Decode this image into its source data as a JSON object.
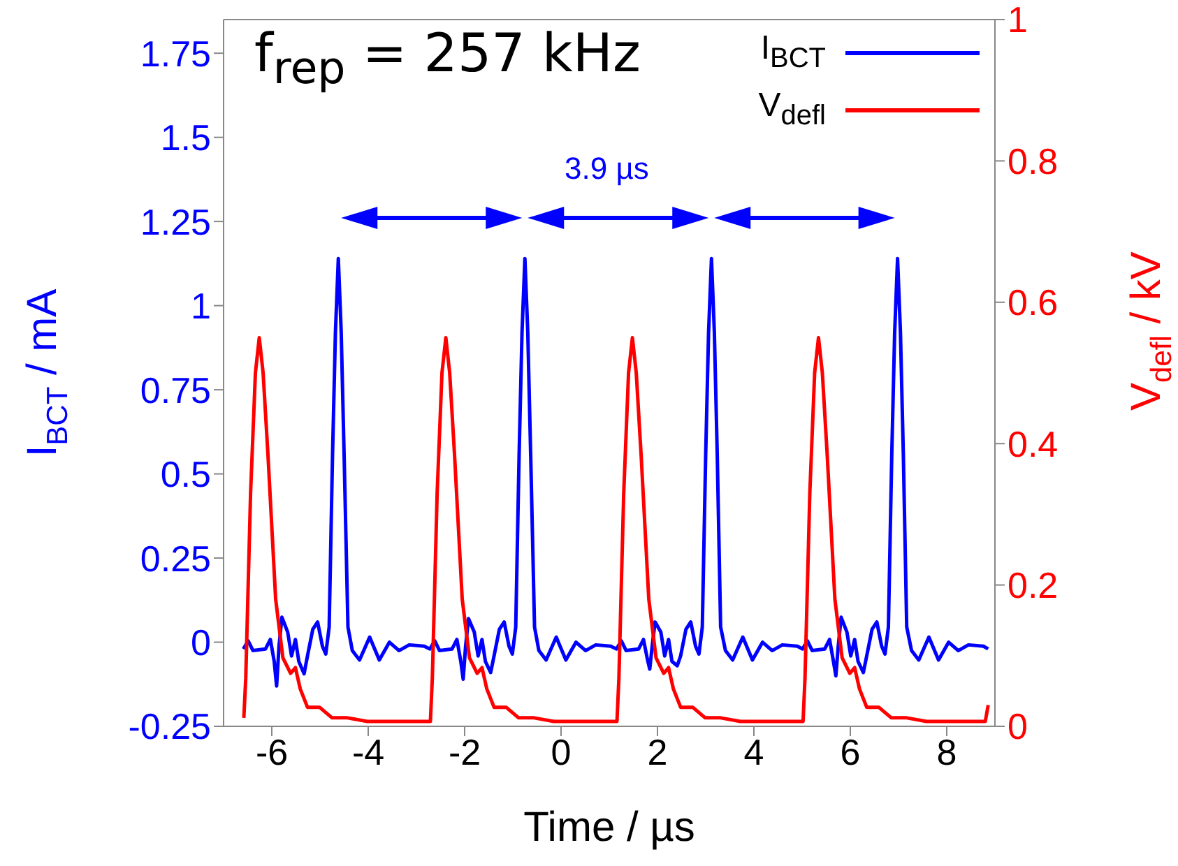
{
  "chart_data": {
    "type": "line",
    "xlabel": "Time / µs",
    "ylabel": "I$_{BCT}$ / mA",
    "y2label": "V$_{defl}$ / kV",
    "annotations": [
      "f$_{rep}$ = 257 kHz",
      "3.9 µs"
    ],
    "xlim": [
      -7,
      9
    ],
    "xticks": [
      -6,
      -4,
      -2,
      0,
      2,
      4,
      6,
      8
    ],
    "ylim": [
      -0.25,
      1.85
    ],
    "yticks": [
      -0.25,
      0,
      0.25,
      0.5,
      0.75,
      1,
      1.25,
      1.5,
      1.75
    ],
    "y2lim": [
      0,
      1
    ],
    "y2ticks": [
      0,
      0.2,
      0.4,
      0.6,
      0.8,
      1
    ],
    "grid": false,
    "legend": "top right",
    "marker": "none",
    "line_style": "solid",
    "series": [
      {
        "name": "I$_{BCT}$",
        "color": "#0000ff",
        "x": [
          -6.59,
          -6.49,
          -6.39,
          -6.13,
          -6.03,
          -5.95,
          -5.9,
          -5.85,
          -5.79,
          -5.67,
          -5.59,
          -5.51,
          -5.44,
          -5.33,
          -5.26,
          -5.15,
          -5.05,
          -4.95,
          -4.88,
          -4.81,
          -4.74,
          -4.68,
          -4.62,
          -4.56,
          -4.5,
          -4.42,
          -4.33,
          -4.18,
          -3.97,
          -3.77,
          -3.56,
          -3.36,
          -3.15,
          -2.84,
          -2.72,
          -2.62,
          -2.52,
          -2.26,
          -2.16,
          -2.08,
          -2.03,
          -1.98,
          -1.92,
          -1.8,
          -1.72,
          -1.64,
          -1.57,
          -1.46,
          -1.39,
          -1.28,
          -1.18,
          -1.08,
          -1.01,
          -0.94,
          -0.87,
          -0.81,
          -0.75,
          -0.69,
          -0.63,
          -0.55,
          -0.46,
          -0.31,
          -0.1,
          0.1,
          0.31,
          0.51,
          0.72,
          1.03,
          1.15,
          1.25,
          1.35,
          1.61,
          1.71,
          1.79,
          1.84,
          1.89,
          1.95,
          2.07,
          2.15,
          2.23,
          2.3,
          2.41,
          2.48,
          2.59,
          2.69,
          2.79,
          2.86,
          2.93,
          3.0,
          3.06,
          3.12,
          3.18,
          3.24,
          3.31,
          3.41,
          3.56,
          3.77,
          3.97,
          4.18,
          4.38,
          4.59,
          4.9,
          5.01,
          5.11,
          5.21,
          5.47,
          5.57,
          5.65,
          5.7,
          5.75,
          5.81,
          5.93,
          6.01,
          6.09,
          6.16,
          6.27,
          6.34,
          6.45,
          6.55,
          6.65,
          6.72,
          6.79,
          6.86,
          6.92,
          6.98,
          7.04,
          7.1,
          7.17,
          7.27,
          7.42,
          7.63,
          7.83,
          8.04,
          8.24,
          8.45,
          8.76,
          8.86
        ],
        "values": [
          -0.02,
          0.004,
          -0.025,
          -0.02,
          0.008,
          -0.057,
          -0.13,
          -0.012,
          0.074,
          0.03,
          -0.041,
          0.008,
          -0.057,
          -0.094,
          -0.041,
          0.038,
          0.06,
          -0.012,
          -0.035,
          0.045,
          0.557,
          0.92,
          1.14,
          0.92,
          0.557,
          0.045,
          -0.025,
          -0.053,
          0.015,
          -0.053,
          0.0,
          -0.025,
          -0.008,
          -0.012,
          -0.02,
          0.004,
          -0.025,
          -0.02,
          0.008,
          -0.057,
          -0.11,
          -0.012,
          0.07,
          0.03,
          -0.041,
          0.008,
          -0.057,
          -0.09,
          -0.041,
          0.038,
          0.06,
          -0.012,
          -0.035,
          0.045,
          0.557,
          0.92,
          1.14,
          0.92,
          0.557,
          0.045,
          -0.025,
          -0.053,
          0.015,
          -0.053,
          0.0,
          -0.025,
          -0.008,
          -0.012,
          -0.02,
          0.004,
          -0.025,
          -0.02,
          0.008,
          -0.05,
          -0.08,
          -0.012,
          0.06,
          0.03,
          -0.041,
          0.008,
          -0.057,
          -0.07,
          -0.041,
          0.038,
          0.06,
          -0.012,
          -0.035,
          0.045,
          0.557,
          0.92,
          1.14,
          0.92,
          0.557,
          0.045,
          -0.025,
          -0.053,
          0.015,
          -0.053,
          0.0,
          -0.025,
          -0.008,
          -0.012,
          -0.02,
          0.004,
          -0.025,
          -0.02,
          0.008,
          -0.057,
          -0.1,
          -0.012,
          0.074,
          0.03,
          -0.041,
          0.008,
          -0.057,
          -0.09,
          -0.041,
          0.038,
          0.06,
          -0.012,
          -0.035,
          0.045,
          0.557,
          0.92,
          1.14,
          0.92,
          0.557,
          0.045,
          -0.025,
          -0.053,
          0.015,
          -0.053,
          0.0,
          -0.025,
          -0.008,
          -0.012,
          -0.02
        ]
      },
      {
        "name": "V$_{defl}$",
        "color": "#ff0000",
        "axis": "y2",
        "x": [
          -6.58,
          -6.54,
          -6.44,
          -6.34,
          -6.26,
          -6.18,
          -6.08,
          -5.92,
          -5.77,
          -5.61,
          -5.51,
          -5.41,
          -5.26,
          -5.01,
          -4.75,
          -4.43,
          -4.02,
          -2.76,
          -2.71,
          -2.67,
          -2.57,
          -2.47,
          -2.39,
          -2.31,
          -2.21,
          -2.05,
          -1.9,
          -1.74,
          -1.64,
          -1.54,
          -1.39,
          -1.14,
          -0.88,
          -0.56,
          -0.15,
          1.11,
          1.16,
          1.2,
          1.3,
          1.4,
          1.48,
          1.56,
          1.66,
          1.82,
          1.97,
          2.13,
          2.23,
          2.33,
          2.48,
          2.73,
          2.99,
          3.31,
          3.72,
          4.98,
          5.02,
          5.06,
          5.16,
          5.26,
          5.34,
          5.42,
          5.52,
          5.68,
          5.83,
          5.99,
          6.09,
          6.19,
          6.34,
          6.59,
          6.85,
          7.17,
          7.58,
          8.8,
          8.86
        ],
        "values": [
          0.012,
          0.068,
          0.33,
          0.5,
          0.55,
          0.5,
          0.385,
          0.18,
          0.097,
          0.075,
          0.083,
          0.053,
          0.027,
          0.027,
          0.012,
          0.012,
          0.007,
          0.007,
          0.007,
          0.068,
          0.33,
          0.5,
          0.55,
          0.5,
          0.385,
          0.18,
          0.097,
          0.075,
          0.083,
          0.053,
          0.027,
          0.027,
          0.012,
          0.012,
          0.007,
          0.007,
          0.007,
          0.068,
          0.33,
          0.5,
          0.55,
          0.5,
          0.385,
          0.18,
          0.097,
          0.075,
          0.083,
          0.053,
          0.027,
          0.027,
          0.012,
          0.012,
          0.007,
          0.007,
          0.007,
          0.068,
          0.33,
          0.5,
          0.55,
          0.5,
          0.385,
          0.18,
          0.097,
          0.075,
          0.083,
          0.053,
          0.027,
          0.027,
          0.012,
          0.012,
          0.007,
          0.007,
          0.03
        ]
      }
    ]
  }
}
